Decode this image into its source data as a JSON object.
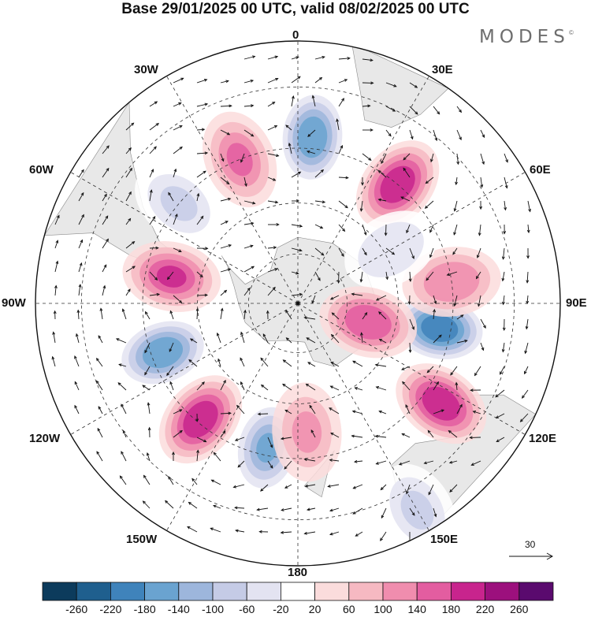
{
  "title": "Base 29/01/2025 00 UTC, valid 08/02/2025 00 UTC",
  "logo": {
    "text": "MODES",
    "mark": "©"
  },
  "longitude_labels": {
    "lon_0": "0",
    "lon_30e": "30E",
    "lon_60e": "60E",
    "lon_90e": "90E",
    "lon_120e": "120E",
    "lon_150e": "150E",
    "lon_180": "180",
    "lon_150w": "150W",
    "lon_120w": "120W",
    "lon_90w": "90W",
    "lon_60w": "60W",
    "lon_30w": "30W"
  },
  "reference_vector": {
    "label": "30"
  },
  "colorbar": {
    "colors": [
      "#0c3b5c",
      "#1f5f8e",
      "#3f83bb",
      "#6aa3d0",
      "#9db6dc",
      "#c5cbe6",
      "#e3e3f1",
      "#ffffff",
      "#fbdcdc",
      "#f6b9c2",
      "#f08dae",
      "#e35da0",
      "#c8248d",
      "#9c107d",
      "#5a0a6e"
    ],
    "labels": [
      "-260",
      "-220",
      "-180",
      "-140",
      "-100",
      "-60",
      "-20",
      "20",
      "60",
      "100",
      "140",
      "180",
      "220",
      "260"
    ]
  },
  "map": {
    "projection": "south-polar-stereographic",
    "land_color": "#e8e8e8",
    "anomalies": [
      {
        "lon": 5,
        "lat": -42,
        "value": -190
      },
      {
        "lon": 40,
        "lat": -45,
        "value": 170
      },
      {
        "lon": -22,
        "lat": -45,
        "value": 120
      },
      {
        "lon": -50,
        "lat": -45,
        "value": -80
      },
      {
        "lon": -78,
        "lat": -52,
        "value": 160
      },
      {
        "lon": -110,
        "lat": -48,
        "value": -170
      },
      {
        "lon": -140,
        "lat": -46,
        "value": 190
      },
      {
        "lon": -168,
        "lat": -47,
        "value": -160
      },
      {
        "lon": 176,
        "lat": -52,
        "value": 80
      },
      {
        "lon": 125,
        "lat": -40,
        "value": 180
      },
      {
        "lon": 100,
        "lat": -48,
        "value": -220
      },
      {
        "lon": 82,
        "lat": -45,
        "value": 90
      },
      {
        "lon": 60,
        "lat": -58,
        "value": -60
      },
      {
        "lon": 105,
        "lat": -68,
        "value": 150
      },
      {
        "lon": 150,
        "lat": -25,
        "value": -80
      }
    ]
  }
}
